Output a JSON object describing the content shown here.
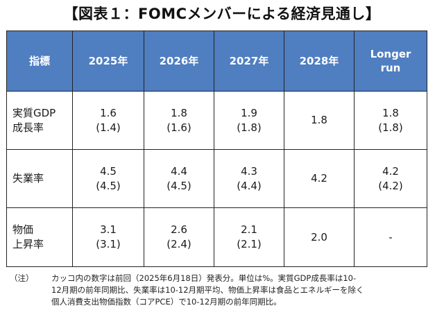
{
  "title": "【図表１：FOMCメンバーによる経済見通し】",
  "table": {
    "headers": [
      "指標",
      "2025年",
      "2026年",
      "2027年",
      "2028年",
      "Longer\nrun"
    ],
    "header_color": "#4f7ec1",
    "rows": [
      {
        "label": [
          "実質GDP",
          "成長率"
        ],
        "cells": [
          [
            "1.6",
            "(1.4)"
          ],
          [
            "1.8",
            "(1.6)"
          ],
          [
            "1.9",
            "(1.8)"
          ],
          [
            "1.8"
          ],
          [
            "1.8",
            "(1.8)"
          ]
        ]
      },
      {
        "label": [
          "失業率"
        ],
        "cells": [
          [
            "4.5",
            "(4.5)"
          ],
          [
            "4.4",
            "(4.5)"
          ],
          [
            "4.3",
            "(4.4)"
          ],
          [
            "4.2"
          ],
          [
            "4.2",
            "(4.2)"
          ]
        ]
      },
      {
        "label": [
          "物価",
          "上昇率"
        ],
        "cells": [
          [
            "3.1",
            "(3.1)"
          ],
          [
            "2.6",
            "(2.4)"
          ],
          [
            "2.1",
            "(2.1)"
          ],
          [
            "2.0"
          ],
          [
            "-"
          ]
        ]
      }
    ]
  },
  "note": {
    "prefix": "（注）",
    "lines": [
      "カッコ内の数字は前回（2025年6月18日）発表分。単位は%。実質GDP成長率は10-",
      "12月期の前年同期比、失業率は10-12月期平均、物価上昇率は食品とエネルギーを除く",
      "個人消費支出物価指数（コアPCE）で10-12月期の前年同期比。"
    ]
  }
}
